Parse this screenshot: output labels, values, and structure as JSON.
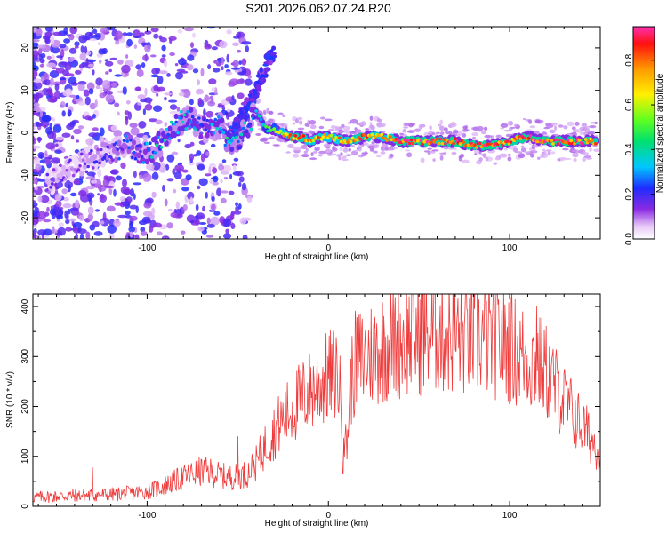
{
  "title": "S201.2026.062.07.24.R20",
  "chart_data": [
    {
      "type": "heatmap",
      "name": "spectrogram",
      "xlabel": "Height of straight line (km)",
      "ylabel": "Frequency (Hz)",
      "xlim": [
        -163,
        150
      ],
      "ylim": [
        -25,
        25
      ],
      "x_ticks": [
        -100,
        0,
        100
      ],
      "x_tick_labels": [
        "-100",
        "0",
        "100"
      ],
      "y_ticks": [
        -20,
        -10,
        0,
        10,
        20
      ],
      "y_tick_labels": [
        "-20",
        "-10",
        "0",
        "10",
        "20"
      ],
      "colorbar": {
        "label": "Normalized spectral amplitude",
        "range": [
          0,
          0.95
        ],
        "ticks": [
          0,
          0.2,
          0.4,
          0.6,
          0.8
        ],
        "tick_labels": [
          "0.0",
          "0.2",
          "0.4",
          "0.6",
          "0.8"
        ]
      },
      "signal_track": {
        "x": [
          -155,
          -140,
          -125,
          -110,
          -100,
          -95,
          -90,
          -85,
          -80,
          -75,
          -70,
          -65,
          -60,
          -55,
          -50,
          -45,
          -40,
          -35,
          -30,
          -25,
          -20,
          -15,
          -10,
          -5,
          0,
          10,
          20,
          30,
          40,
          50,
          60,
          70,
          80,
          90,
          100,
          110,
          120,
          130,
          140,
          148
        ],
        "freq_hz": [
          -12,
          -8,
          -5,
          -3,
          -5,
          -3,
          -2,
          1,
          3,
          3,
          1,
          1,
          2,
          -2,
          -2,
          1,
          5,
          1,
          1,
          0,
          -1,
          -1,
          -2,
          -1,
          -1,
          -2,
          -1,
          -1,
          -2,
          -2,
          -2,
          -2,
          -3,
          -3,
          -2,
          -1,
          -2,
          -2,
          -2,
          -2
        ],
        "amplitude": [
          0.15,
          0.15,
          0.2,
          0.25,
          0.3,
          0.35,
          0.35,
          0.35,
          0.35,
          0.35,
          0.3,
          0.3,
          0.35,
          0.4,
          0.35,
          0.35,
          0.3,
          0.45,
          0.55,
          0.7,
          0.85,
          0.85,
          0.75,
          0.8,
          0.7,
          0.8,
          0.85,
          0.75,
          0.9,
          0.9,
          0.85,
          0.9,
          0.9,
          0.9,
          0.85,
          0.9,
          0.9,
          0.9,
          0.9,
          0.85
        ]
      },
      "dispersive_branch": {
        "x": [
          -55,
          -50,
          -45,
          -40,
          -35,
          -30
        ],
        "freq_hz": [
          -2,
          2,
          6,
          10,
          15,
          19
        ]
      }
    },
    {
      "type": "line",
      "name": "snr",
      "xlabel": "Height of straight line (km)",
      "ylabel": "SNR (10 * v/v)",
      "xlim": [
        -163,
        150
      ],
      "ylim": [
        0,
        425
      ],
      "x_ticks": [
        -100,
        0,
        100
      ],
      "x_tick_labels": [
        "-100",
        "0",
        "100"
      ],
      "y_ticks": [
        0,
        100,
        200,
        300,
        400
      ],
      "y_tick_labels": [
        "0",
        "100",
        "200",
        "300",
        "400"
      ],
      "color": "#ee3b3b",
      "x": [
        -163,
        -150,
        -140,
        -130,
        -120,
        -110,
        -100,
        -95,
        -90,
        -85,
        -80,
        -75,
        -70,
        -65,
        -60,
        -55,
        -50,
        -45,
        -40,
        -35,
        -30,
        -25,
        -20,
        -15,
        -10,
        -5,
        0,
        5,
        8,
        10,
        12,
        15,
        20,
        25,
        30,
        35,
        40,
        45,
        50,
        55,
        60,
        65,
        70,
        75,
        80,
        85,
        90,
        95,
        100,
        105,
        110,
        115,
        120,
        125,
        130,
        135,
        140,
        145,
        150
      ],
      "values": [
        18,
        20,
        22,
        22,
        24,
        26,
        30,
        35,
        42,
        50,
        58,
        65,
        70,
        68,
        62,
        58,
        60,
        65,
        85,
        120,
        150,
        175,
        195,
        215,
        230,
        245,
        258,
        270,
        170,
        110,
        240,
        290,
        295,
        310,
        320,
        330,
        335,
        340,
        345,
        350,
        348,
        345,
        342,
        340,
        340,
        338,
        335,
        330,
        320,
        305,
        295,
        290,
        270,
        240,
        210,
        185,
        160,
        135,
        110
      ],
      "spikes": [
        {
          "x": -130,
          "value": 78
        },
        {
          "x": -50,
          "value": 140
        },
        {
          "x": 8,
          "value": 65
        },
        {
          "x": 78,
          "value": 415
        },
        {
          "x": 115,
          "value": 400
        }
      ]
    }
  ]
}
